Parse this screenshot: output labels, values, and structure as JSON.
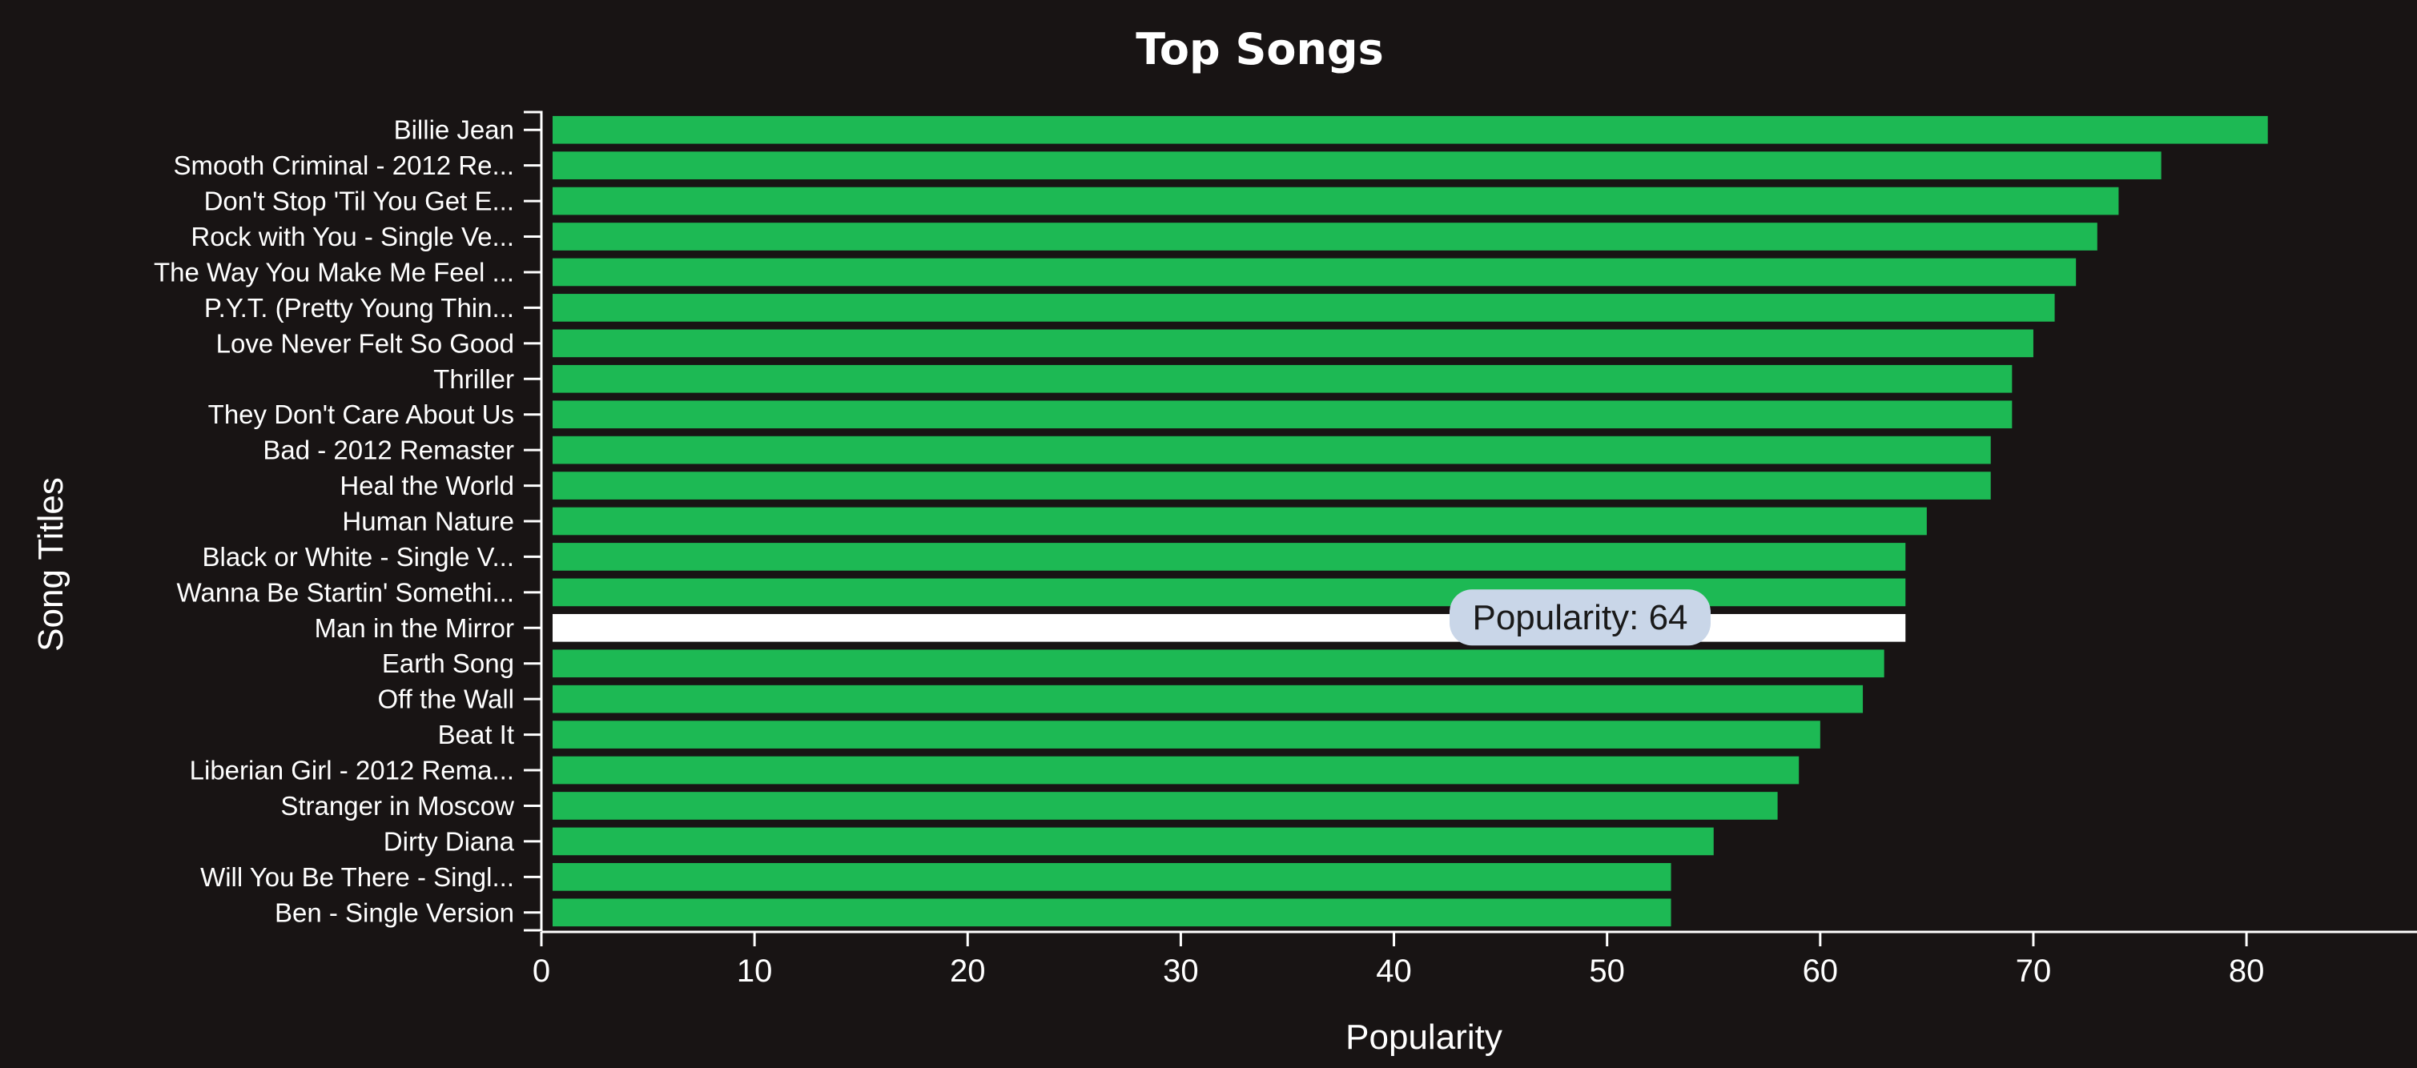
{
  "chart_data": {
    "type": "bar",
    "orientation": "horizontal",
    "title": "Top Songs",
    "xlabel": "Popularity",
    "ylabel": "Song Titles",
    "xlim": [
      0,
      88
    ],
    "xticks": [
      0,
      10,
      20,
      30,
      40,
      50,
      60,
      70,
      80
    ],
    "grid": false,
    "categories": [
      "Billie Jean",
      "Smooth Criminal - 2012 Re...",
      "Don't Stop 'Til You Get E...",
      "Rock with You - Single Ve...",
      "The Way You Make Me Feel ...",
      "P.Y.T. (Pretty Young Thin...",
      "Love Never Felt So Good",
      "Thriller",
      "They Don't Care About Us",
      "Bad - 2012 Remaster",
      "Heal the World",
      "Human Nature",
      "Black or White - Single V...",
      "Wanna Be Startin' Somethi...",
      "Man in the Mirror",
      "Earth Song",
      "Off the Wall",
      "Beat It",
      "Liberian Girl - 2012 Rema...",
      "Stranger in Moscow",
      "Dirty Diana",
      "Will You Be There - Singl...",
      "Ben - Single Version"
    ],
    "values": [
      81,
      76,
      74,
      73,
      72,
      71,
      70,
      69,
      69,
      68,
      68,
      65,
      64,
      64,
      64,
      63,
      62,
      60,
      59,
      58,
      55,
      53,
      53
    ],
    "highlighted_index": 14,
    "tooltip": "Popularity: 64",
    "colors": {
      "bar": "#1DB954",
      "highlight": "#FFFFFF",
      "background": "#181414",
      "axis": "#FFFFFF",
      "tooltip_bg": "#C9D6E8"
    }
  }
}
